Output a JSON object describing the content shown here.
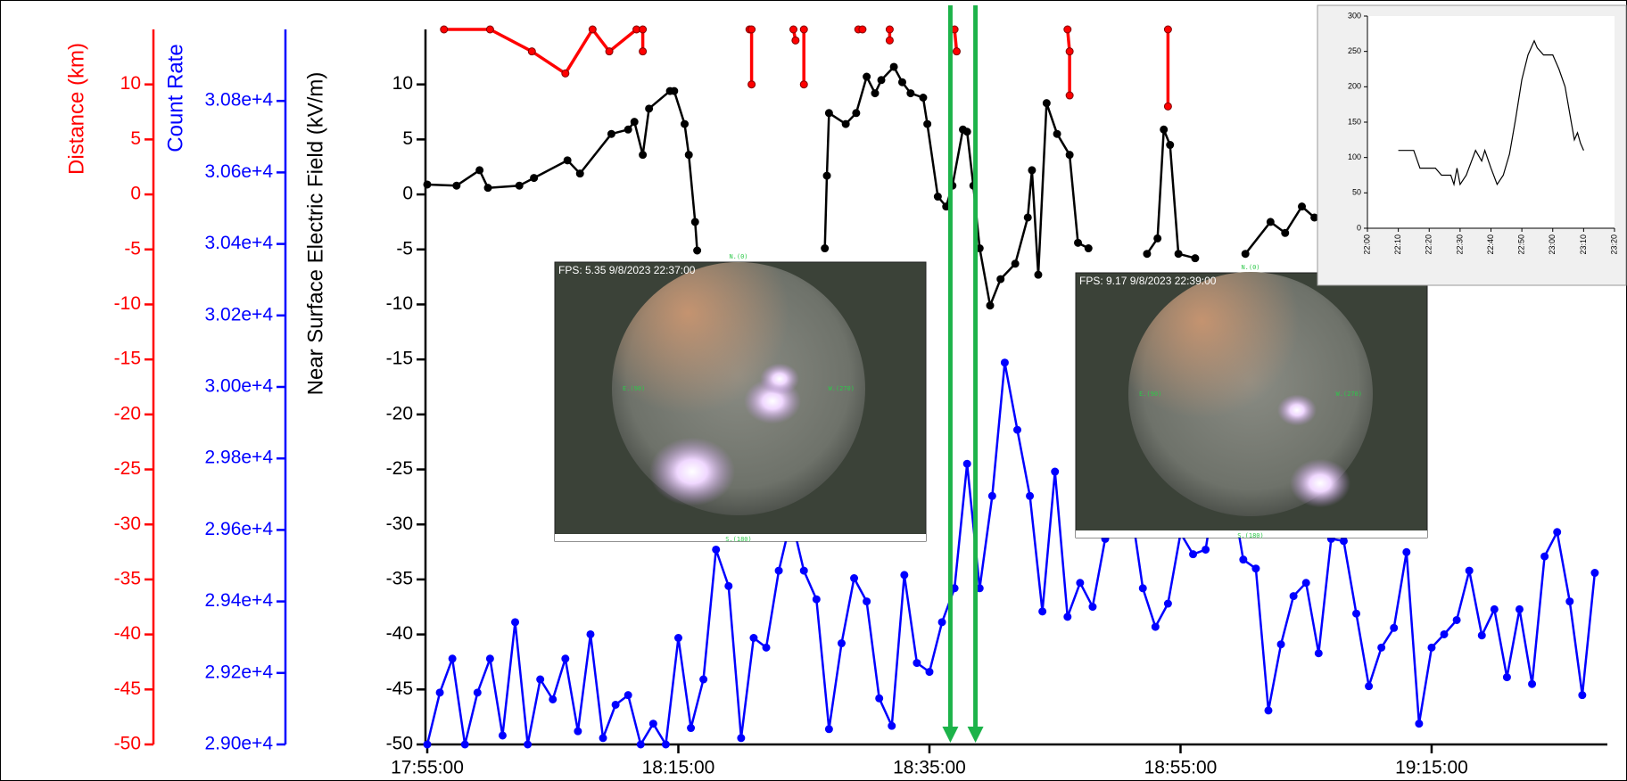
{
  "chart_data": [
    {
      "type": "line",
      "xlim": [
        "17:55:00",
        "19:29:00"
      ],
      "xticks": [
        "17:55:00",
        "18:15:00",
        "18:35:00",
        "18:55:00",
        "19:15:00"
      ],
      "y_axes": [
        {
          "label": "Distance (km)",
          "color": "#ff0000",
          "ylim": [
            -50,
            15
          ],
          "yticks": [
            -50,
            -45,
            -40,
            -35,
            -30,
            -25,
            -20,
            -15,
            -10,
            -5,
            0,
            5,
            10
          ]
        },
        {
          "label": "Count Rate",
          "color": "#0000ff",
          "ylim": [
            29000,
            31000
          ],
          "yticks": [
            {
              "value": 29000,
              "label": "2.90e+4"
            },
            {
              "value": 29200,
              "label": "2.92e+4"
            },
            {
              "value": 29400,
              "label": "2.94e+4"
            },
            {
              "value": 29600,
              "label": "2.96e+4"
            },
            {
              "value": 29800,
              "label": "2.98e+4"
            },
            {
              "value": 30000,
              "label": "3.00e+4"
            },
            {
              "value": 30200,
              "label": "3.02e+4"
            },
            {
              "value": 30400,
              "label": "3.04e+4"
            },
            {
              "value": 30600,
              "label": "3.06e+4"
            },
            {
              "value": 30800,
              "label": "3.08e+4"
            }
          ]
        },
        {
          "label": "Near Surface Electric Field (kV/m)",
          "color": "#000000",
          "ylim": [
            -50,
            15
          ],
          "yticks": [
            -50,
            -45,
            -40,
            -35,
            -30,
            -25,
            -20,
            -15,
            -10,
            -5,
            0,
            5,
            10
          ]
        }
      ],
      "series": [
        {
          "axis": 0,
          "color": "#ff0000",
          "x": [
            "17:56:20",
            "18:00:00",
            "18:03:20",
            "18:06:00",
            "18:08:10",
            "18:09:30",
            "18:11:40",
            "18:12:10",
            "18:12:10",
            null,
            "18:20:40",
            "18:20:50",
            "18:20:50",
            null,
            "18:24:10",
            "18:24:20",
            null,
            "18:25:00",
            "18:25:00",
            null,
            "18:29:20",
            "18:29:40",
            null,
            "18:31:50",
            "18:31:50",
            null,
            "18:37:00",
            "18:37:10",
            null,
            "18:46:00",
            "18:46:10",
            "18:46:10",
            null,
            "18:54:00",
            "18:54:00"
          ],
          "values": [
            15,
            15,
            13,
            11,
            15,
            13,
            15,
            15,
            13,
            null,
            15,
            15,
            10,
            null,
            15,
            14,
            null,
            15,
            10,
            null,
            15,
            15,
            null,
            15,
            14,
            null,
            15,
            13,
            null,
            15,
            13,
            9,
            null,
            15,
            8
          ]
        },
        {
          "axis": 2,
          "color": "#000000",
          "x": [
            "17:55:00",
            "17:57:20",
            "17:59:10",
            "17:59:50",
            "18:02:20",
            "18:03:30",
            "18:06:10",
            "18:07:10",
            "18:09:40",
            "18:11:00",
            "18:11:30",
            "18:12:10",
            "18:12:40",
            "18:14:20",
            "18:14:40",
            "18:15:30",
            "18:15:50",
            "18:16:20",
            "18:16:30",
            null,
            "18:26:40",
            "18:26:50",
            "18:27:00",
            "18:28:20",
            "18:29:10",
            "18:30:00",
            "18:30:40",
            "18:31:10",
            "18:32:10",
            "18:32:50",
            "18:33:30",
            "18:34:30",
            "18:34:50",
            "18:35:40",
            "18:36:20",
            "18:36:50",
            "18:37:40",
            "18:38:00",
            "18:38:30",
            "18:39:00",
            "18:39:50",
            "18:40:40",
            "18:41:50",
            "18:42:50",
            "18:43:10",
            "18:43:40",
            "18:44:20",
            "18:45:10",
            "18:46:10",
            "18:46:50",
            "18:47:40",
            null,
            "18:52:20",
            "18:53:10",
            "18:53:40",
            "18:54:10",
            "18:54:50",
            "18:56:10",
            null,
            "19:00:10",
            "19:02:10",
            "19:03:20",
            "19:04:40",
            "19:05:40"
          ],
          "values": [
            0.9,
            0.8,
            2.2,
            0.6,
            0.8,
            1.5,
            3.1,
            1.9,
            5.5,
            5.9,
            6.6,
            3.6,
            7.8,
            9.4,
            9.4,
            6.4,
            3.6,
            -2.5,
            -5.1,
            null,
            -4.9,
            1.7,
            7.4,
            6.4,
            7.4,
            10.7,
            9.2,
            10.4,
            11.6,
            10.2,
            9.2,
            8.8,
            6.4,
            -0.2,
            -1.1,
            0.8,
            5.9,
            5.7,
            0.8,
            -4.9,
            -10.1,
            -7.7,
            -6.3,
            -2.1,
            2.2,
            -7.3,
            8.3,
            5.5,
            3.6,
            -4.4,
            -4.9,
            null,
            -5.4,
            -4.0,
            5.9,
            4.5,
            -5.4,
            -5.8,
            null,
            -5.4,
            -2.5,
            -3.5,
            -1.1,
            -2.1
          ]
        },
        {
          "axis": 1,
          "color": "#0000ff",
          "x": [
            "17:55:00",
            "17:56:00",
            "17:57:00",
            "17:58:00",
            "17:59:00",
            "18:00:00",
            "18:01:00",
            "18:02:00",
            "18:03:00",
            "18:04:00",
            "18:05:00",
            "18:06:00",
            "18:07:00",
            "18:08:00",
            "18:09:00",
            "18:10:00",
            "18:11:00",
            "18:12:00",
            "18:13:00",
            "18:14:00",
            "18:15:00",
            "18:16:00",
            "18:17:00",
            "18:18:00",
            "18:19:00",
            "18:20:00",
            "18:21:00",
            "18:22:00",
            "18:23:00",
            "18:24:00",
            "18:25:00",
            "18:26:00",
            "18:27:00",
            "18:28:00",
            "18:29:00",
            "18:30:00",
            "18:31:00",
            "18:32:00",
            "18:33:00",
            "18:34:00",
            "18:35:00",
            "18:36:00",
            "18:37:00",
            "18:38:00",
            "18:39:00",
            "18:40:00",
            "18:41:00",
            "18:42:00",
            "18:43:00",
            "18:44:00",
            "18:45:00",
            "18:46:00",
            "18:47:00",
            "18:48:00",
            "18:49:00",
            "18:50:00",
            "18:51:00",
            "18:52:00",
            "18:53:00",
            "18:54:00",
            "18:55:00",
            "18:56:00",
            "18:57:00",
            "18:58:00",
            "18:59:00",
            "19:00:00",
            "19:01:00",
            "19:02:00",
            "19:03:00",
            "19:04:00",
            "19:05:00",
            "19:06:00",
            "19:07:00",
            "19:08:00",
            "19:09:00",
            "19:10:00",
            "19:11:00",
            "19:12:00",
            "19:13:00",
            "19:14:00",
            "19:15:00",
            "19:16:00",
            "19:17:00",
            "19:18:00",
            "19:19:00",
            "19:20:00",
            "19:21:00",
            "19:22:00",
            "19:23:00",
            "19:24:00",
            "19:25:00",
            "19:26:00",
            "19:27:00",
            "19:28:00"
          ],
          "values": [
            29000,
            29145,
            29240,
            29000,
            29145,
            29240,
            29025,
            29342,
            29000,
            29182,
            29126,
            29240,
            29037,
            29308,
            29018,
            29111,
            29138,
            29000,
            29058,
            29000,
            29298,
            29046,
            29182,
            29545,
            29443,
            29018,
            29298,
            29271,
            29486,
            29634,
            29486,
            29406,
            29043,
            29283,
            29465,
            29400,
            29129,
            29052,
            29474,
            29228,
            29203,
            29342,
            29437,
            29785,
            29437,
            29695,
            30068,
            29880,
            29695,
            29372,
            29763,
            29357,
            29452,
            29385,
            29575,
            29769,
            29677,
            29437,
            29329,
            29394,
            29591,
            29532,
            29545,
            29769,
            29720,
            29517,
            29492,
            29095,
            29280,
            29415,
            29452,
            29255,
            29575,
            29569,
            29366,
            29163,
            29271,
            29326,
            29538,
            29058,
            29271,
            29308,
            29348,
            29486,
            29305,
            29378,
            29188,
            29378,
            29169,
            29526,
            29594,
            29400,
            29138,
            29480
          ]
        }
      ],
      "markers": {
        "color": "#1db34a",
        "x": [
          "18:36:40",
          "18:38:40"
        ]
      }
    },
    {
      "type": "line",
      "xlim": [
        "22:00",
        "23:20"
      ],
      "xticks": [
        "22:00",
        "22:10",
        "22:20",
        "22:30",
        "22:40",
        "22:50",
        "23:00",
        "23:10",
        "23:20"
      ],
      "ylim": [
        0,
        300
      ],
      "yticks": [
        0,
        50,
        100,
        150,
        200,
        250,
        300
      ],
      "color": "#000000",
      "x": [
        "22:10",
        "22:15",
        "22:17",
        "22:22",
        "22:24",
        "22:27",
        "22:28",
        "22:29",
        "22:30",
        "22:32",
        "22:35",
        "22:37",
        "22:38",
        "22:40",
        "22:42",
        "22:44",
        "22:46",
        "22:48",
        "22:50",
        "22:52",
        "22:54",
        "22:55",
        "22:57",
        "23:00",
        "23:02",
        "23:04",
        "23:06",
        "23:07",
        "23:08",
        "23:09",
        "23:10"
      ],
      "values": [
        110,
        110,
        85,
        85,
        75,
        75,
        62,
        85,
        62,
        75,
        110,
        95,
        110,
        85,
        62,
        75,
        105,
        155,
        210,
        245,
        265,
        255,
        245,
        245,
        225,
        200,
        150,
        125,
        135,
        120,
        110
      ]
    }
  ],
  "images": [
    {
      "caption": "FPS: 5.35 9/8/2023 22:37:00",
      "directions": [
        "N.(0)",
        "E.(90)",
        "W.(270)",
        "S.(180)"
      ]
    },
    {
      "caption": "FPS: 9.17 9/8/2023 22:39:00",
      "directions": [
        "N.(0)",
        "E.(90)",
        "W.(270)",
        "S.(180)"
      ]
    }
  ]
}
